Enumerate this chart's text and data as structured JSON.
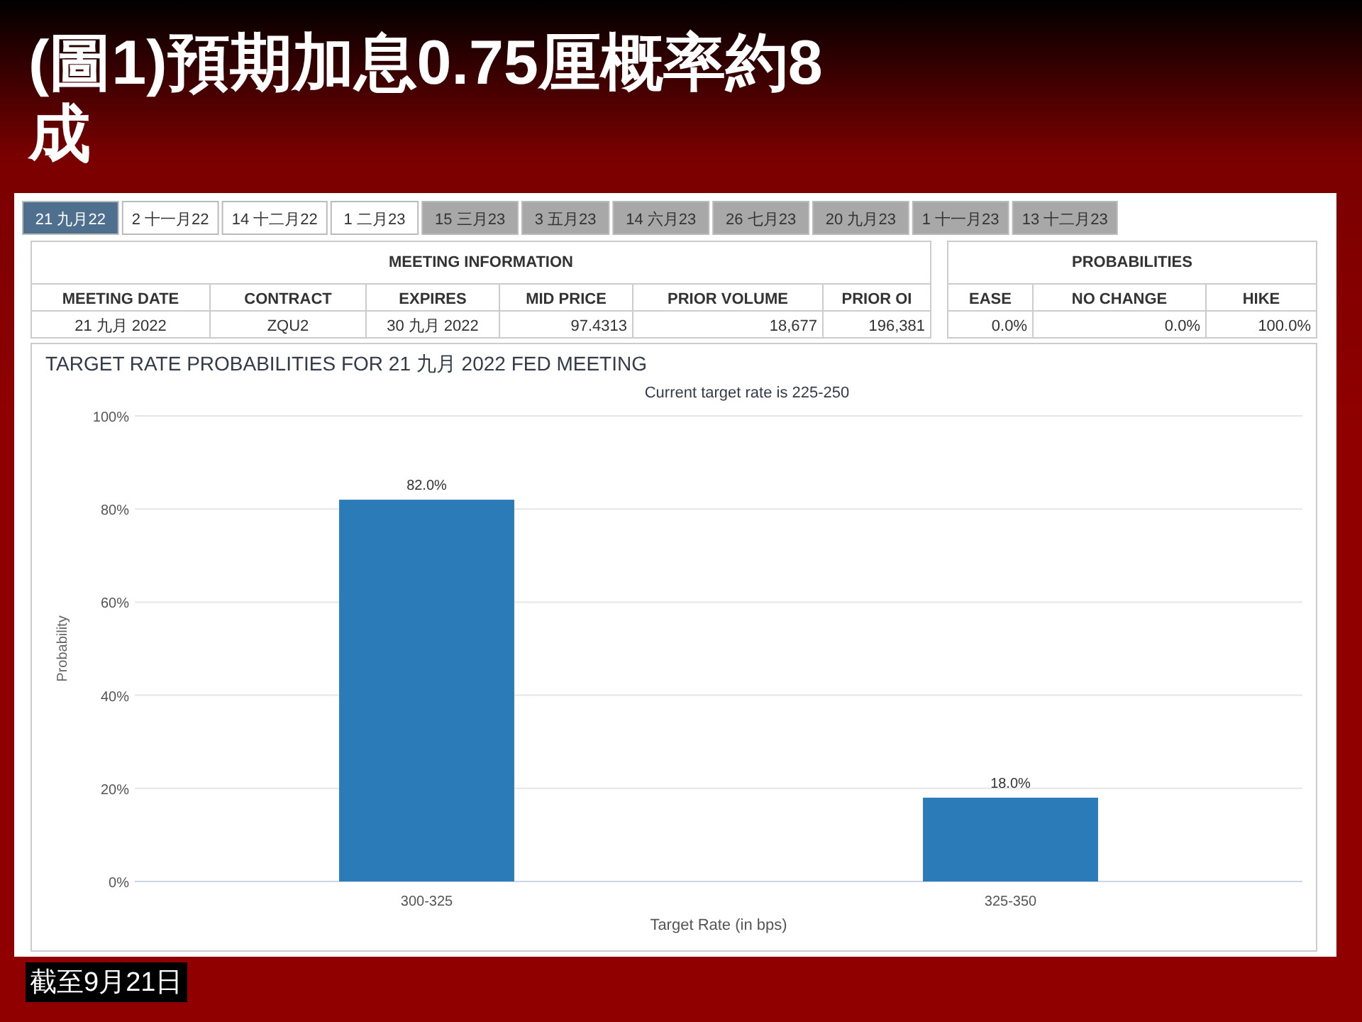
{
  "chart_data": [
    {
      "type": "other",
      "title": "(圖1)預期加息0.75厘概率約8成",
      "annotations": [
        "21 九月22",
        "2 十一月22",
        "14 十二月22",
        "1 二月23",
        "15 三月23",
        "3 五月23",
        "14 六月23",
        "26 七月23",
        "20 九月23",
        "1 十一月23",
        "13 十二月23",
        "MEETING INFORMATION",
        "PROBABILITIES",
        "MEETING DATE",
        "CONTRACT",
        "EXPIRES",
        "MID PRICE",
        "PRIOR VOLUME",
        "PRIOR OI",
        "EASE",
        "NO CHANGE",
        "HIKE",
        "21 九月 2022",
        "ZQU2",
        "30 九月 2022",
        "97.4313",
        "18,677",
        "196,381",
        "0.0%",
        "0.0%",
        "100.0%"
      ]
    },
    {
      "type": "bar",
      "title": "TARGET RATE PROBABILITIES FOR 21 九月 2022 FED MEETING",
      "subtitle": "Current target rate is 225-250",
      "xlabel": "Target Rate (in bps)",
      "ylabel": "Probability",
      "categories": [
        "300-325",
        "325-350"
      ],
      "values": [
        82.0,
        18.0
      ],
      "value_labels": [
        "82.0%",
        "18.0%"
      ],
      "color": "#2b7bb9",
      "ylim": [
        0,
        100
      ],
      "yticks": [
        {
          "value": 0,
          "label": "0%"
        },
        {
          "value": 20,
          "label": "20%"
        },
        {
          "value": 40,
          "label": "40%"
        },
        {
          "value": 60,
          "label": "60%"
        },
        {
          "value": 80,
          "label": "80%"
        },
        {
          "value": 100,
          "label": "100%"
        }
      ],
      "grid": "y",
      "annotations": [
        "截至9月21日"
      ]
    }
  ]
}
